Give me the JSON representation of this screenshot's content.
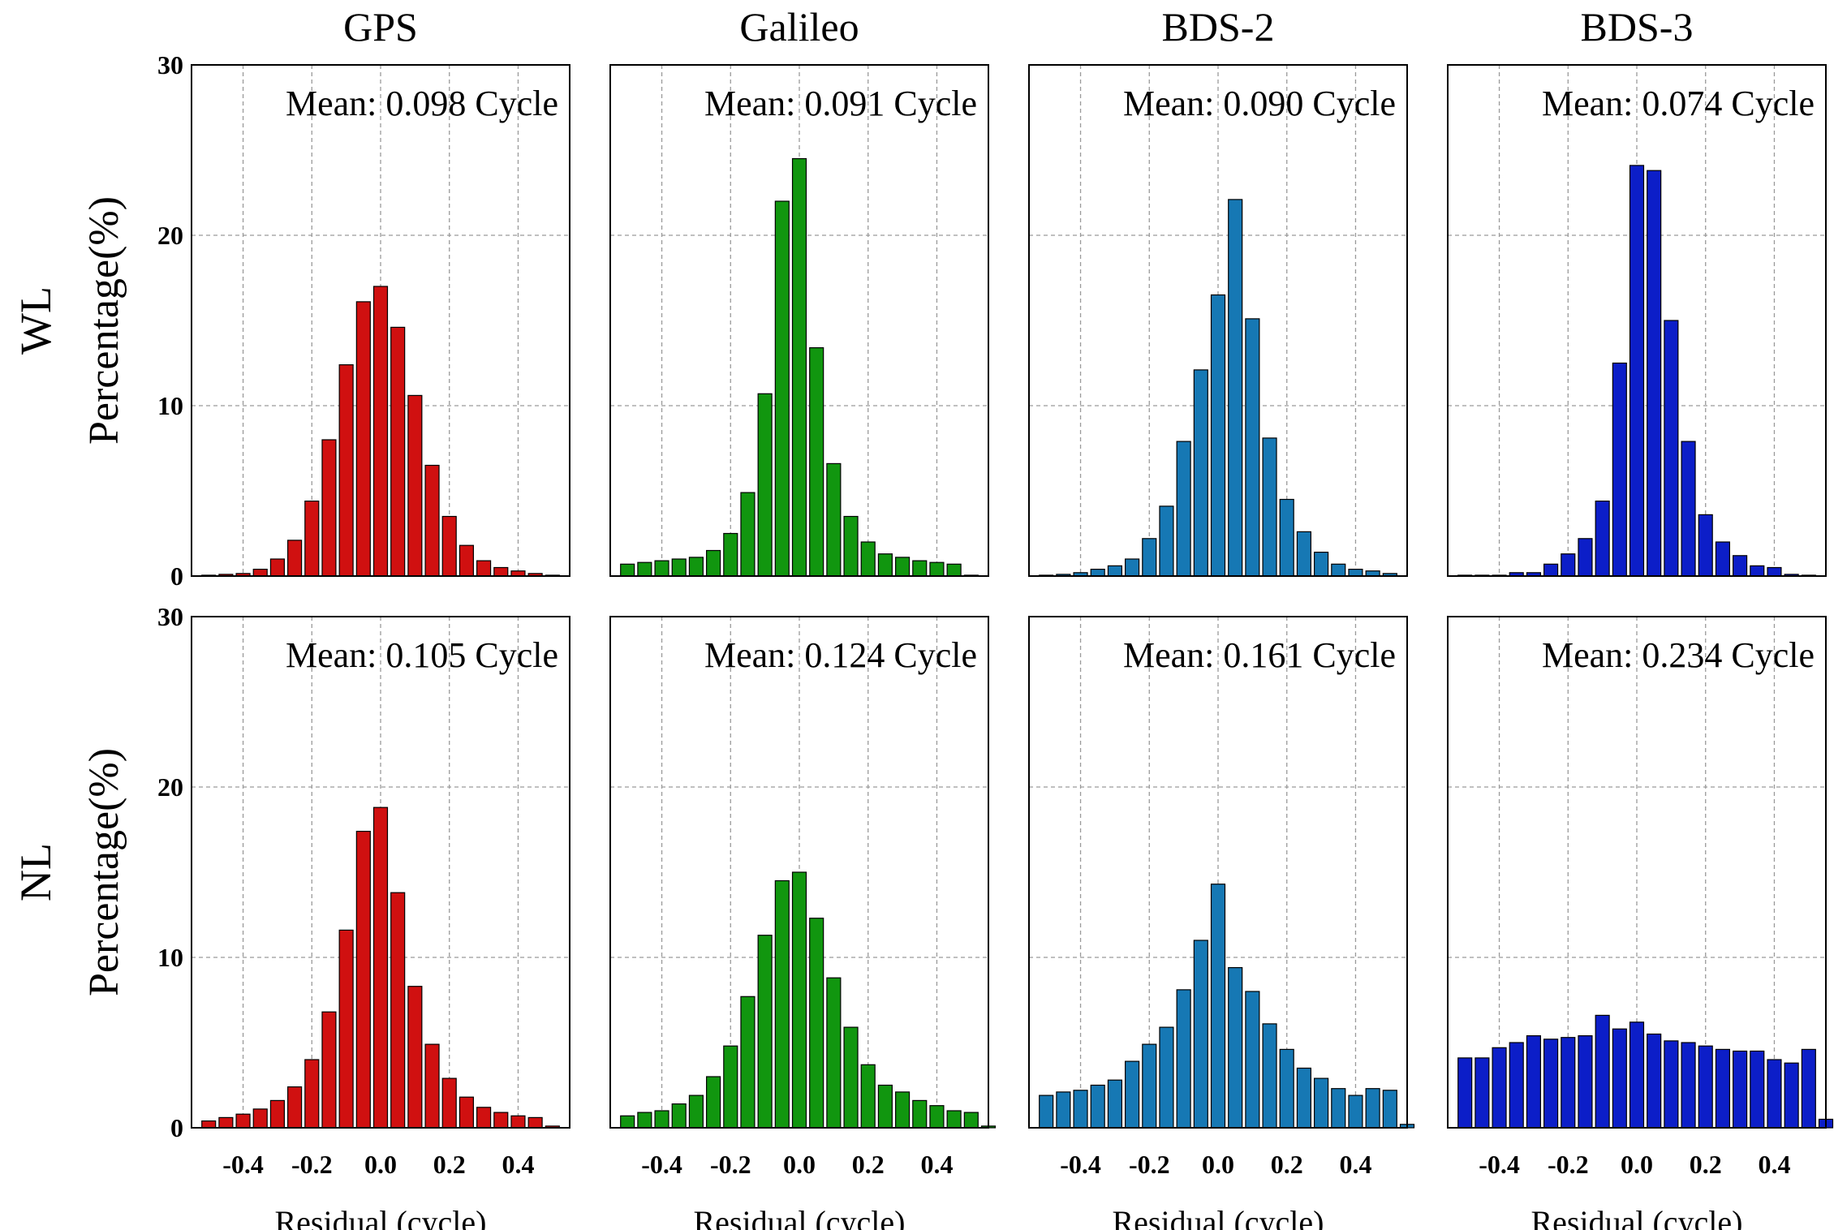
{
  "chart_data": {
    "type": "bar",
    "layout": "4 columns x 2 rows of histograms",
    "columns": [
      "GPS",
      "Galileo",
      "BDS-2",
      "BDS-3"
    ],
    "rows": [
      "WL",
      "NL"
    ],
    "xlabel": "Residual (cycle)",
    "ylabel": "Percentage(%)",
    "xlim": [
      -0.55,
      0.55
    ],
    "ylim": [
      0,
      30
    ],
    "xticks": [
      -0.4,
      -0.2,
      0.0,
      0.2,
      0.4
    ],
    "xtick_labels": [
      "-0.4",
      "-0.2",
      "0.0",
      "0.2",
      "0.4"
    ],
    "yticks": [
      0,
      10,
      20,
      30
    ],
    "ytick_labels": [
      "0",
      "10",
      "20",
      "30"
    ],
    "grid": true,
    "bin_centers": [
      -0.5,
      -0.45,
      -0.4,
      -0.35,
      -0.3,
      -0.25,
      -0.2,
      -0.15,
      -0.1,
      -0.05,
      0.0,
      0.05,
      0.1,
      0.15,
      0.2,
      0.25,
      0.3,
      0.35,
      0.4,
      0.45,
      0.5,
      0.55
    ],
    "panels": [
      {
        "system": "GPS",
        "type": "WL",
        "color": "#d01010",
        "mean_label": "Mean: 0.098 Cycle",
        "values": [
          0.05,
          0.1,
          0.15,
          0.4,
          1.0,
          2.1,
          4.4,
          8.0,
          12.4,
          16.1,
          17.0,
          14.6,
          10.6,
          6.5,
          3.5,
          1.8,
          0.9,
          0.5,
          0.3,
          0.15,
          0.05,
          0
        ]
      },
      {
        "system": "Galileo",
        "type": "WL",
        "color": "#11960f",
        "mean_label": "Mean: 0.091 Cycle",
        "values": [
          0.7,
          0.8,
          0.9,
          1.0,
          1.1,
          1.5,
          2.5,
          4.9,
          10.7,
          22.0,
          24.5,
          13.4,
          6.6,
          3.5,
          2.0,
          1.3,
          1.1,
          0.9,
          0.8,
          0.7,
          0.05,
          0
        ]
      },
      {
        "system": "BDS-2",
        "type": "WL",
        "color": "#1678b4",
        "mean_label": "Mean: 0.090 Cycle",
        "values": [
          0.05,
          0.1,
          0.2,
          0.4,
          0.6,
          1.0,
          2.2,
          4.1,
          7.9,
          12.1,
          16.5,
          22.1,
          15.1,
          8.1,
          4.5,
          2.6,
          1.4,
          0.7,
          0.4,
          0.3,
          0.15,
          0
        ]
      },
      {
        "system": "BDS-3",
        "type": "WL",
        "color": "#0c1ec8",
        "mean_label": "Mean: 0.074 Cycle",
        "values": [
          0.05,
          0.05,
          0.05,
          0.2,
          0.2,
          0.7,
          1.3,
          2.2,
          4.4,
          12.5,
          24.1,
          23.8,
          15.0,
          7.9,
          3.6,
          2.0,
          1.2,
          0.6,
          0.5,
          0.1,
          0.05,
          0
        ]
      },
      {
        "system": "GPS",
        "type": "NL",
        "color": "#d01010",
        "mean_label": "Mean: 0.105 Cycle",
        "values": [
          0.4,
          0.6,
          0.8,
          1.1,
          1.6,
          2.4,
          4.0,
          6.8,
          11.6,
          17.4,
          18.8,
          13.8,
          8.3,
          4.9,
          2.9,
          1.8,
          1.2,
          0.9,
          0.7,
          0.6,
          0.1,
          0
        ]
      },
      {
        "system": "Galileo",
        "type": "NL",
        "color": "#11960f",
        "mean_label": "Mean: 0.124 Cycle",
        "values": [
          0.7,
          0.9,
          1.0,
          1.4,
          1.9,
          3.0,
          4.8,
          7.7,
          11.3,
          14.5,
          15.0,
          12.3,
          8.8,
          5.9,
          3.7,
          2.5,
          2.1,
          1.6,
          1.3,
          1.0,
          0.9,
          0.1
        ]
      },
      {
        "system": "BDS-2",
        "type": "NL",
        "color": "#1678b4",
        "mean_label": "Mean: 0.161 Cycle",
        "values": [
          1.9,
          2.1,
          2.2,
          2.5,
          2.8,
          3.9,
          4.9,
          5.9,
          8.1,
          11.0,
          14.3,
          9.4,
          8.0,
          6.1,
          4.6,
          3.5,
          2.9,
          2.3,
          1.9,
          2.3,
          2.2,
          0.2
        ]
      },
      {
        "system": "BDS-3",
        "type": "NL",
        "color": "#0c1ec8",
        "mean_label": "Mean: 0.234 Cycle",
        "values": [
          4.1,
          4.1,
          4.7,
          5.0,
          5.4,
          5.2,
          5.3,
          5.4,
          6.6,
          5.8,
          6.2,
          5.5,
          5.1,
          5.0,
          4.8,
          4.6,
          4.5,
          4.5,
          4.0,
          3.8,
          4.6,
          0.5
        ]
      }
    ]
  }
}
